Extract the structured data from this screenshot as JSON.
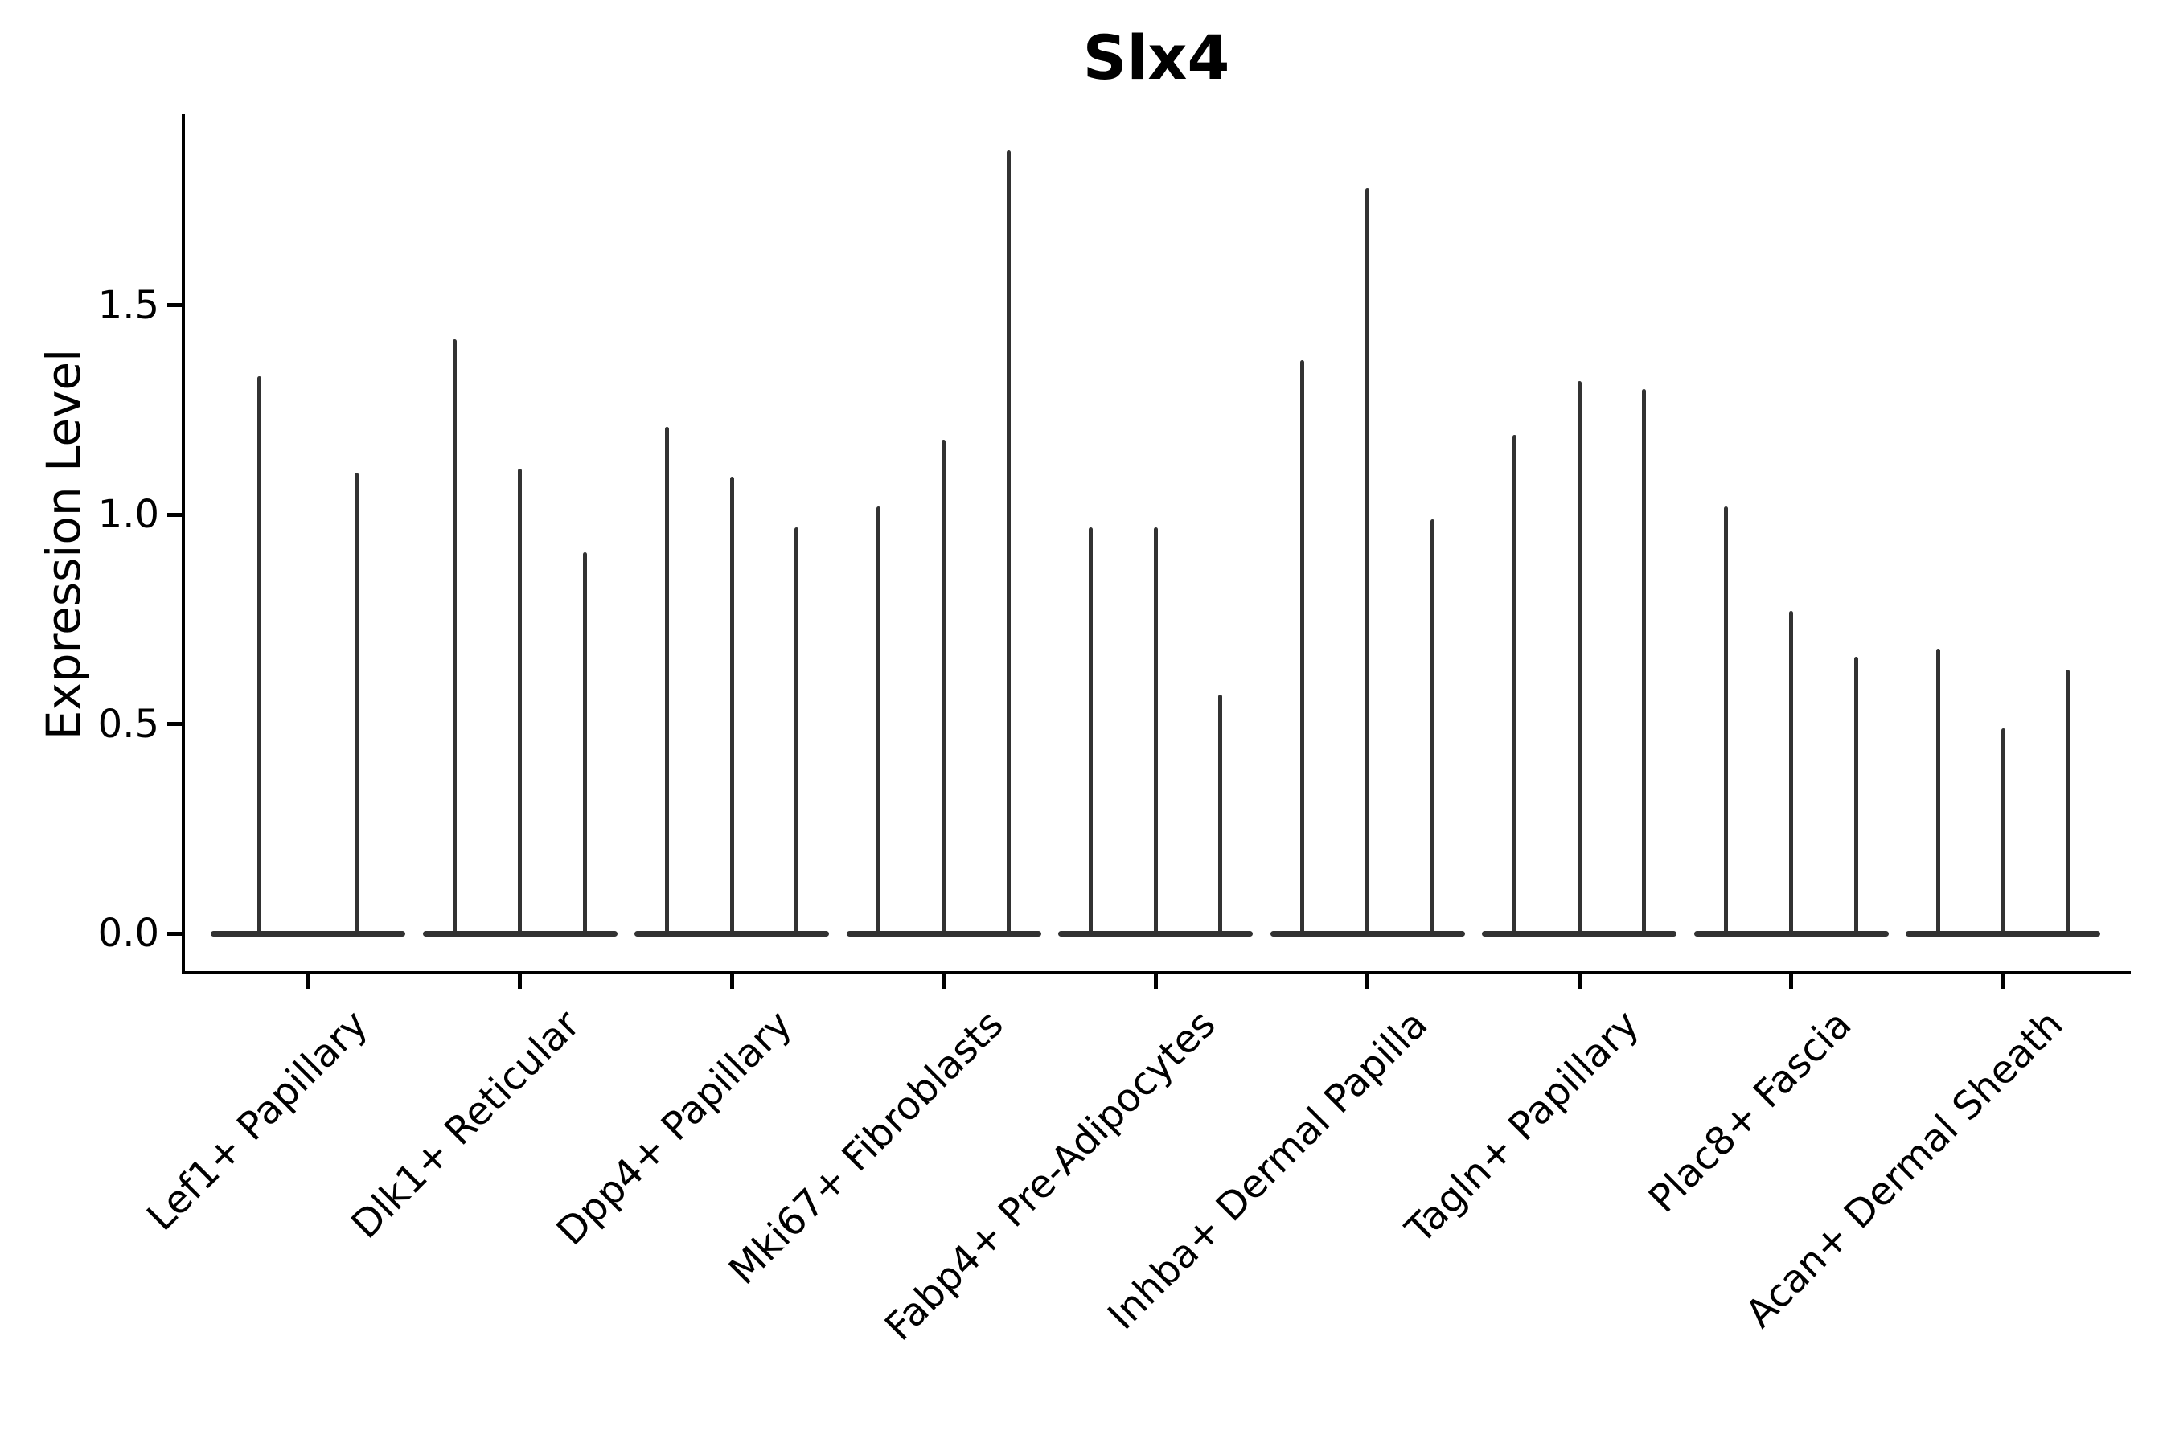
{
  "title": "Slx4",
  "colors": {
    "violin": "#323232",
    "axis": "#000000",
    "text": "#000000",
    "background": "#ffffff"
  },
  "chart_data": {
    "type": "violin",
    "title": "Slx4",
    "xlabel": "",
    "ylabel": "Expression Level",
    "ylim": [
      -0.1,
      1.96
    ],
    "grid": false,
    "legend_position": "none",
    "ytick_labels": [
      "0.0",
      "0.5",
      "1.0",
      "1.5"
    ],
    "ytick_values": [
      0.0,
      0.5,
      1.0,
      1.5
    ],
    "categories": [
      "Lef1+ Papillary",
      "Dlk1+ Reticular",
      "Dpp4+ Papillary",
      "Mki67+ Fibroblasts",
      "Fabp4+ Pre-Adipocytes",
      "Inhba+ Dermal Papilla",
      "Tagln+ Papillary",
      "Plac8+ Fascia",
      "Acan+ Dermal Sheath"
    ],
    "series": [
      {
        "category": "Lef1+ Papillary",
        "violin_max": [
          1.33,
          1.1
        ]
      },
      {
        "category": "Dlk1+ Reticular",
        "violin_max": [
          1.42,
          1.11,
          0.91
        ]
      },
      {
        "category": "Dpp4+ Papillary",
        "violin_max": [
          1.21,
          1.09,
          0.97
        ]
      },
      {
        "category": "Mki67+ Fibroblasts",
        "violin_max": [
          1.02,
          1.18,
          1.87
        ]
      },
      {
        "category": "Fabp4+ Pre-Adipocytes",
        "violin_max": [
          0.97,
          0.97,
          0.57
        ]
      },
      {
        "category": "Inhba+ Dermal Papilla",
        "violin_max": [
          1.37,
          1.78,
          0.99
        ]
      },
      {
        "category": "Tagln+ Papillary",
        "violin_max": [
          1.19,
          1.32,
          1.3
        ]
      },
      {
        "category": "Plac8+ Fascia",
        "violin_max": [
          1.02,
          0.77,
          0.66
        ]
      },
      {
        "category": "Acan+ Dermal Sheath",
        "violin_max": [
          0.68,
          0.49,
          0.63
        ]
      }
    ],
    "violin_min": 0.0
  }
}
